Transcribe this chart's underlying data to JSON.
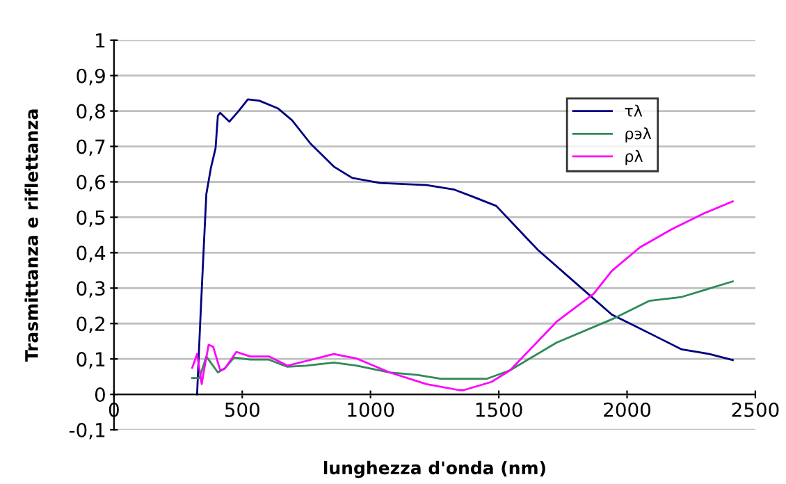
{
  "chart_data": {
    "type": "line",
    "xlabel": "lunghezza d'onda (nm)",
    "ylabel": "Trasmittanza e riflettanza",
    "xlim": [
      0,
      2500
    ],
    "ylim": [
      -0.1,
      1
    ],
    "xticks": [
      0,
      500,
      1000,
      1500,
      2000,
      2500
    ],
    "yticks": [
      {
        "value": -0.1,
        "label": "-0,1"
      },
      0,
      {
        "value": 0.1,
        "label": "0,1"
      },
      {
        "value": 0.2,
        "label": "0,2"
      },
      {
        "value": 0.3,
        "label": "0,3"
      },
      {
        "value": 0.4,
        "label": "0,4"
      },
      {
        "value": 0.5,
        "label": "0,5"
      },
      {
        "value": 0.6,
        "label": "0,6"
      },
      {
        "value": 0.7,
        "label": "0,7"
      },
      {
        "value": 0.8,
        "label": "0,8"
      },
      {
        "value": 0.9,
        "label": "0,9"
      },
      1
    ],
    "grid": "y",
    "legend": "top right",
    "marker": "none",
    "line_style": "solid",
    "series": [
      {
        "name": "τλ",
        "color": "#000080",
        "x": [
          324,
          336,
          347,
          360,
          378,
          396,
          405,
          414,
          450,
          486,
          522,
          567,
          640,
          694,
          766,
          857,
          929,
          1037,
          1218,
          1327,
          1399,
          1490,
          1652,
          1797,
          1941,
          2014,
          2122,
          2213,
          2321,
          2412
        ],
        "values": [
          0,
          0.2,
          0.37,
          0.565,
          0.64,
          0.695,
          0.787,
          0.795,
          0.77,
          0.8,
          0.833,
          0.829,
          0.807,
          0.774,
          0.708,
          0.643,
          0.611,
          0.597,
          0.591,
          0.578,
          0.558,
          0.532,
          0.408,
          0.316,
          0.225,
          0.199,
          0.16,
          0.127,
          0.114,
          0.097
        ]
      },
      {
        "name": "ρэλ",
        "color": "#2e8b57",
        "x": [
          305,
          333,
          360,
          405,
          432,
          468,
          531,
          604,
          676,
          748,
          857,
          947,
          1074,
          1182,
          1273,
          1399,
          1453,
          1544,
          1725,
          1941,
          2086,
          2213,
          2412
        ],
        "values": [
          0.046,
          0.046,
          0.107,
          0.062,
          0.073,
          0.104,
          0.098,
          0.098,
          0.078,
          0.081,
          0.09,
          0.081,
          0.062,
          0.055,
          0.044,
          0.044,
          0.044,
          0.068,
          0.146,
          0.212,
          0.264,
          0.275,
          0.319
        ]
      },
      {
        "name": "ρλ",
        "color": "#ff00ff",
        "x": [
          305,
          324,
          342,
          351,
          369,
          387,
          414,
          432,
          477,
          531,
          604,
          676,
          748,
          857,
          947,
          1074,
          1218,
          1345,
          1363,
          1471,
          1544,
          1725,
          1870,
          1941,
          2050,
          2176,
          2303,
          2412
        ],
        "values": [
          0.075,
          0.114,
          0.029,
          0.068,
          0.14,
          0.134,
          0.068,
          0.073,
          0.12,
          0.107,
          0.107,
          0.081,
          0.094,
          0.114,
          0.101,
          0.062,
          0.029,
          0.012,
          0.012,
          0.035,
          0.068,
          0.205,
          0.284,
          0.349,
          0.415,
          0.467,
          0.512,
          0.545
        ]
      }
    ]
  }
}
